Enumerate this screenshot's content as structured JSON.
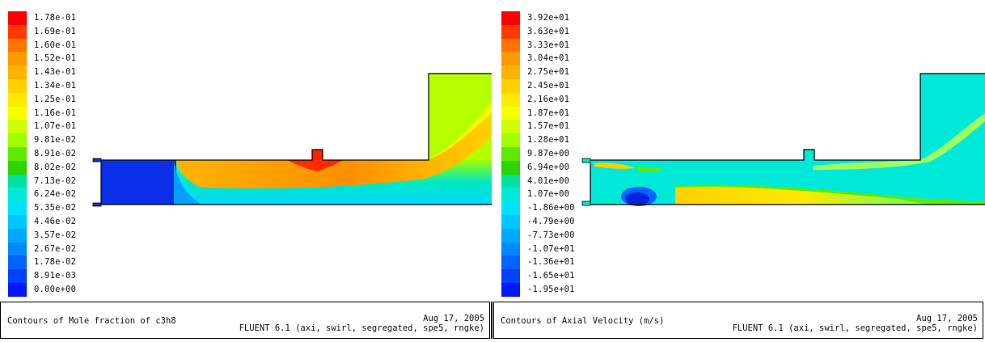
{
  "left_panel": {
    "legend_labels": [
      "1.78e-01",
      "1.69e-01",
      "1.60e-01",
      "1.52e-01",
      "1.43e-01",
      "1.34e-01",
      "1.25e-01",
      "1.16e-01",
      "1.07e-01",
      "9.81e-02",
      "8.91e-02",
      "8.02e-02",
      "7.13e-02",
      "6.24e-02",
      "5.35e-02",
      "4.46e-02",
      "3.57e-02",
      "2.67e-02",
      "1.78e-02",
      "8.91e-03",
      "0.00e+00"
    ],
    "legend_colors": [
      "#ff0000",
      "#ff3a00",
      "#ff7400",
      "#ff9b00",
      "#ffb400",
      "#ffcf00",
      "#ffea00",
      "#f6ff00",
      "#cdff00",
      "#a0ff00",
      "#5fe900",
      "#2cd400",
      "#00e0a0",
      "#00e8d8",
      "#00e0ff",
      "#00c8ff",
      "#00a8ff",
      "#0088ff",
      "#0064ff",
      "#0040ff",
      "#0018ff"
    ],
    "footer_title": "Contours of Mole fraction of c3h8",
    "footer_date": "Aug 17, 2005",
    "footer_solver": "FLUENT 6.1 (axi, swirl, segregated, spe5, rngke)"
  },
  "right_panel": {
    "legend_labels": [
      "3.92e+01",
      "3.63e+01",
      "3.33e+01",
      "3.04e+01",
      "2.75e+01",
      "2.45e+01",
      "2.16e+01",
      "1.87e+01",
      "1.57e+01",
      "1.28e+01",
      "9.87e+00",
      "6.94e+00",
      "4.01e+00",
      "1.07e+00",
      "-1.86e+00",
      "-4.79e+00",
      "-7.73e+00",
      "-1.07e+01",
      "-1.36e+01",
      "-1.65e+01",
      "-1.95e+01"
    ],
    "legend_colors": [
      "#ff0000",
      "#ff3a00",
      "#ff7400",
      "#ff9b00",
      "#ffb400",
      "#ffcf00",
      "#ffea00",
      "#f6ff00",
      "#cdff00",
      "#a0ff00",
      "#5fe900",
      "#2cd400",
      "#00e0a0",
      "#00e8d8",
      "#00e0ff",
      "#00c8ff",
      "#00a8ff",
      "#0088ff",
      "#0064ff",
      "#0040ff",
      "#0018ff"
    ],
    "footer_title": "Contours of Axial Velocity (m/s)",
    "footer_date": "Aug 17, 2005",
    "footer_solver": "FLUENT 6.1 (axi, swirl, segregated, spe5, rngke)"
  }
}
